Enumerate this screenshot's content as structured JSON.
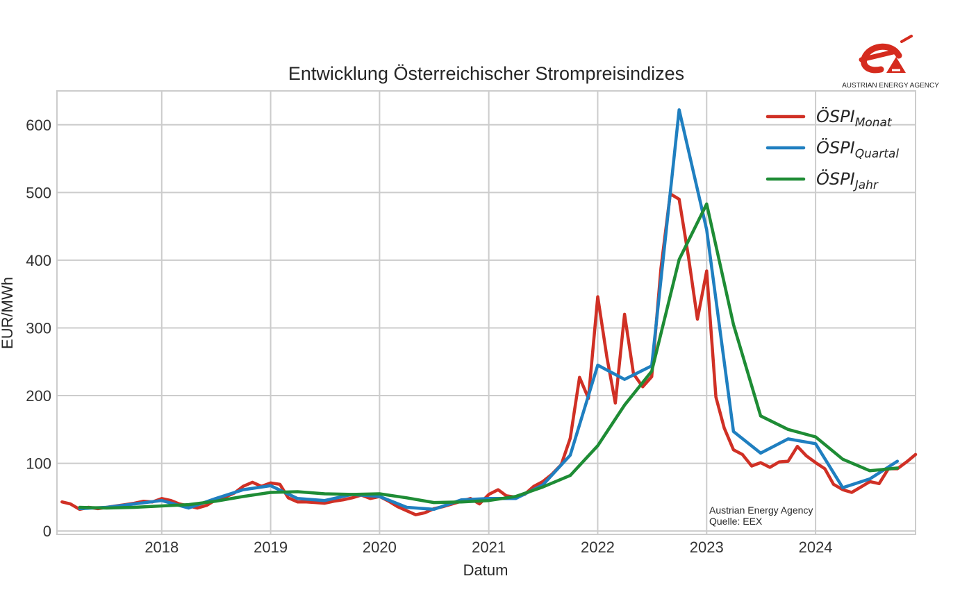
{
  "logo": {
    "name": "AUSTRIAN ENERGY AGENCY",
    "color": "#d52b1e"
  },
  "note": [
    "Austrian Energy Agency",
    "Quelle: EEX"
  ],
  "chart_data": {
    "type": "line",
    "title": "Entwicklung Österreichischer Strompreisindizes",
    "xlabel": "Datum",
    "ylabel": "EUR/MWh",
    "xlim": [
      "2017-01-15",
      "2024-12-01"
    ],
    "ylim": [
      -5,
      650
    ],
    "x_ticks": [
      "2018",
      "2019",
      "2020",
      "2021",
      "2022",
      "2023",
      "2024"
    ],
    "y_ticks": [
      0,
      100,
      200,
      300,
      400,
      500,
      600
    ],
    "grid": true,
    "legend_position": "top-right",
    "series": [
      {
        "name": "ÖSPI",
        "subscript": "Monat",
        "color": "#d03025",
        "points": [
          [
            "2017-02-01",
            43
          ],
          [
            "2017-03-01",
            40
          ],
          [
            "2017-04-01",
            32
          ],
          [
            "2017-05-01",
            35
          ],
          [
            "2017-06-01",
            33
          ],
          [
            "2017-07-01",
            35
          ],
          [
            "2017-08-01",
            37
          ],
          [
            "2017-09-01",
            39
          ],
          [
            "2017-10-01",
            41
          ],
          [
            "2017-11-01",
            44
          ],
          [
            "2017-12-01",
            43
          ],
          [
            "2018-01-01",
            48
          ],
          [
            "2018-02-01",
            45
          ],
          [
            "2018-03-01",
            40
          ],
          [
            "2018-04-01",
            37
          ],
          [
            "2018-05-01",
            34
          ],
          [
            "2018-06-01",
            38
          ],
          [
            "2018-07-01",
            46
          ],
          [
            "2018-08-01",
            50
          ],
          [
            "2018-09-01",
            56
          ],
          [
            "2018-10-01",
            66
          ],
          [
            "2018-11-01",
            72
          ],
          [
            "2018-12-01",
            66
          ],
          [
            "2019-01-01",
            71
          ],
          [
            "2019-02-01",
            69
          ],
          [
            "2019-03-01",
            49
          ],
          [
            "2019-04-01",
            43
          ],
          [
            "2019-05-01",
            43
          ],
          [
            "2019-06-01",
            42
          ],
          [
            "2019-07-01",
            41
          ],
          [
            "2019-08-01",
            44
          ],
          [
            "2019-09-01",
            46
          ],
          [
            "2019-10-01",
            49
          ],
          [
            "2019-11-01",
            53
          ],
          [
            "2019-12-01",
            48
          ],
          [
            "2020-01-01",
            51
          ],
          [
            "2020-02-01",
            44
          ],
          [
            "2020-03-01",
            36
          ],
          [
            "2020-04-01",
            30
          ],
          [
            "2020-05-01",
            24
          ],
          [
            "2020-06-01",
            27
          ],
          [
            "2020-07-01",
            33
          ],
          [
            "2020-08-01",
            36
          ],
          [
            "2020-09-01",
            40
          ],
          [
            "2020-10-01",
            44
          ],
          [
            "2020-11-01",
            48
          ],
          [
            "2020-12-01",
            40
          ],
          [
            "2021-01-01",
            54
          ],
          [
            "2021-02-01",
            61
          ],
          [
            "2021-03-01",
            52
          ],
          [
            "2021-04-01",
            50
          ],
          [
            "2021-05-01",
            54
          ],
          [
            "2021-06-01",
            66
          ],
          [
            "2021-07-01",
            73
          ],
          [
            "2021-08-01",
            84
          ],
          [
            "2021-09-01",
            98
          ],
          [
            "2021-10-01",
            137
          ],
          [
            "2021-11-01",
            227
          ],
          [
            "2021-12-01",
            196
          ],
          [
            "2022-01-01",
            346
          ],
          [
            "2022-02-01",
            256
          ],
          [
            "2022-03-01",
            189
          ],
          [
            "2022-04-01",
            320
          ],
          [
            "2022-05-01",
            232
          ],
          [
            "2022-06-01",
            213
          ],
          [
            "2022-07-01",
            228
          ],
          [
            "2022-08-01",
            388
          ],
          [
            "2022-09-01",
            498
          ],
          [
            "2022-10-01",
            490
          ],
          [
            "2022-11-01",
            405
          ],
          [
            "2022-12-01",
            313
          ],
          [
            "2023-01-01",
            384
          ],
          [
            "2023-02-01",
            198
          ],
          [
            "2023-03-01",
            152
          ],
          [
            "2023-04-01",
            120
          ],
          [
            "2023-05-01",
            113
          ],
          [
            "2023-06-01",
            96
          ],
          [
            "2023-07-01",
            101
          ],
          [
            "2023-08-01",
            94
          ],
          [
            "2023-09-01",
            102
          ],
          [
            "2023-10-01",
            103
          ],
          [
            "2023-11-01",
            125
          ],
          [
            "2023-12-01",
            111
          ],
          [
            "2024-01-01",
            101
          ],
          [
            "2024-02-01",
            92
          ],
          [
            "2024-03-01",
            69
          ],
          [
            "2024-04-01",
            61
          ],
          [
            "2024-05-01",
            57
          ],
          [
            "2024-06-01",
            65
          ],
          [
            "2024-07-01",
            73
          ],
          [
            "2024-08-01",
            70
          ],
          [
            "2024-09-01",
            92
          ],
          [
            "2024-10-01",
            92
          ],
          [
            "2024-11-01",
            102
          ],
          [
            "2024-12-01",
            113
          ]
        ]
      },
      {
        "name": "ÖSPI",
        "subscript": "Quartal",
        "color": "#1f7fc0",
        "points": [
          [
            "2017-04-01",
            33
          ],
          [
            "2017-07-01",
            35
          ],
          [
            "2017-10-01",
            40
          ],
          [
            "2018-01-01",
            45
          ],
          [
            "2018-04-01",
            34
          ],
          [
            "2018-07-01",
            48
          ],
          [
            "2018-10-01",
            61
          ],
          [
            "2019-01-01",
            67
          ],
          [
            "2019-04-01",
            48
          ],
          [
            "2019-07-01",
            45
          ],
          [
            "2019-10-01",
            54
          ],
          [
            "2020-01-01",
            51
          ],
          [
            "2020-04-01",
            35
          ],
          [
            "2020-07-01",
            32
          ],
          [
            "2020-10-01",
            46
          ],
          [
            "2021-01-01",
            48
          ],
          [
            "2021-04-01",
            48
          ],
          [
            "2021-07-01",
            68
          ],
          [
            "2021-10-01",
            112
          ],
          [
            "2022-01-01",
            245
          ],
          [
            "2022-04-01",
            224
          ],
          [
            "2022-07-01",
            244
          ],
          [
            "2022-10-01",
            622
          ],
          [
            "2023-01-01",
            445
          ],
          [
            "2023-04-01",
            147
          ],
          [
            "2023-07-01",
            115
          ],
          [
            "2023-10-01",
            136
          ],
          [
            "2024-01-01",
            129
          ],
          [
            "2024-04-01",
            64
          ],
          [
            "2024-07-01",
            77
          ],
          [
            "2024-10-01",
            103
          ]
        ]
      },
      {
        "name": "ÖSPI",
        "subscript": "Jahr",
        "color": "#1e8c35",
        "points": [
          [
            "2017-04-01",
            35
          ],
          [
            "2017-07-01",
            34
          ],
          [
            "2017-10-01",
            35
          ],
          [
            "2018-01-01",
            37
          ],
          [
            "2018-04-01",
            39
          ],
          [
            "2018-07-01",
            44
          ],
          [
            "2018-10-01",
            51
          ],
          [
            "2019-01-01",
            57
          ],
          [
            "2019-04-01",
            58
          ],
          [
            "2019-07-01",
            55
          ],
          [
            "2019-10-01",
            54
          ],
          [
            "2020-01-01",
            55
          ],
          [
            "2020-04-01",
            49
          ],
          [
            "2020-07-01",
            42
          ],
          [
            "2020-10-01",
            43
          ],
          [
            "2021-01-01",
            45
          ],
          [
            "2021-04-01",
            51
          ],
          [
            "2021-07-01",
            65
          ],
          [
            "2021-10-01",
            82
          ],
          [
            "2022-01-01",
            126
          ],
          [
            "2022-04-01",
            186
          ],
          [
            "2022-07-01",
            236
          ],
          [
            "2022-10-01",
            401
          ],
          [
            "2023-01-01",
            483
          ],
          [
            "2023-04-01",
            305
          ],
          [
            "2023-07-01",
            170
          ],
          [
            "2023-10-01",
            150
          ],
          [
            "2024-01-01",
            139
          ],
          [
            "2024-04-01",
            106
          ],
          [
            "2024-07-01",
            89
          ],
          [
            "2024-10-01",
            93
          ]
        ]
      }
    ]
  }
}
